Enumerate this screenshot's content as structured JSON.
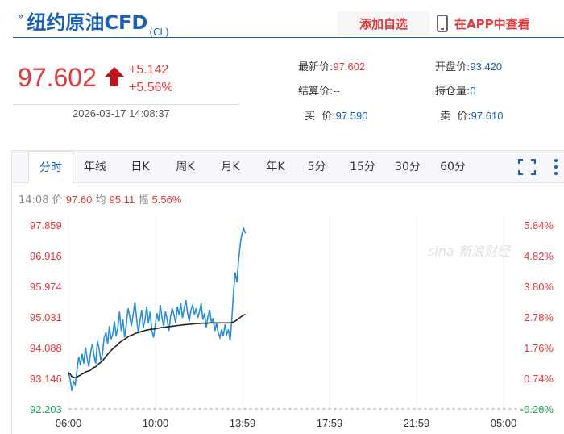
{
  "header": {
    "title": "纽约原油CFD",
    "code": "(CL)",
    "add_label": "添加自选",
    "app_label": "在APP中查看"
  },
  "quote": {
    "price": "97.602",
    "change": "+5.142",
    "change_pct": "+5.56%",
    "datetime": "2026-03-17 14:08:37",
    "fields": [
      {
        "label": "最新价:",
        "value": "97.602",
        "red": true
      },
      {
        "label": "开盘价:",
        "value": "93.420",
        "red": false
      },
      {
        "label": "结算价:",
        "value": "--",
        "red": false
      },
      {
        "label": "持仓量:",
        "value": "0",
        "red": false
      },
      {
        "label": "买  价:",
        "value": "97.590",
        "red": false
      },
      {
        "label": "卖  价:",
        "value": "97.610",
        "red": false
      }
    ]
  },
  "tabs": [
    "分时",
    "年线",
    "日K",
    "周K",
    "月K",
    "年K",
    "5分",
    "15分",
    "30分",
    "60分"
  ],
  "active_tab": 0,
  "infobar": {
    "time": "14:08",
    "price_label": "价",
    "price": "97.60",
    "avg_label": "均",
    "avg": "95.11",
    "amp_label": "幅",
    "amp": "5.56%"
  },
  "watermark": "新浪财经",
  "colors": {
    "red": "#e4393c",
    "blue": "#1a5fb4",
    "green": "#1aaa55",
    "price_line": "#2a8fd4",
    "avg_line": "#222222"
  },
  "chart_data": {
    "type": "line",
    "y_left_ticks": [
      "97.859",
      "96.916",
      "95.974",
      "95.031",
      "94.088",
      "93.146",
      "92.203"
    ],
    "y_right_ticks": [
      "5.84%",
      "4.82%",
      "3.80%",
      "2.78%",
      "1.76%",
      "0.74%",
      "-0.28%"
    ],
    "ylim": [
      92.203,
      97.859
    ],
    "x_ticks": [
      "06:00",
      "10:00",
      "13:59",
      "17:59",
      "21:59",
      "05:00"
    ],
    "prev_close": 92.46,
    "series": [
      {
        "key": "price",
        "values": [
          93.35,
          93.1,
          92.75,
          93.05,
          92.95,
          93.4,
          93.8,
          93.55,
          93.9,
          93.6,
          94.1,
          93.75,
          93.5,
          93.95,
          94.2,
          93.85,
          93.6,
          94.3,
          94.05,
          93.7,
          93.9,
          94.4,
          94.55,
          94.2,
          94.75,
          94.35,
          94.5,
          94.9,
          94.45,
          94.7,
          95.2,
          94.6,
          94.95,
          94.4,
          94.8,
          95.3,
          95.05,
          94.75,
          95.1,
          95.5,
          95.0,
          94.55,
          94.9,
          95.25,
          94.7,
          94.95,
          95.35,
          94.85,
          95.2,
          94.6,
          94.4,
          94.8,
          95.15,
          94.9,
          95.4,
          95.0,
          94.75,
          95.2,
          94.95,
          94.6,
          95.05,
          95.3,
          95.1,
          94.85,
          95.35,
          95.1,
          95.45,
          95.0,
          95.3,
          95.55,
          95.15,
          94.9,
          95.25,
          95.4,
          95.1,
          95.3,
          95.0,
          95.2,
          95.45,
          94.95,
          95.15,
          94.7,
          95.05,
          95.25,
          94.85,
          95.0,
          94.6,
          94.85,
          94.55,
          94.4,
          94.65,
          94.45,
          94.8,
          94.5,
          94.65,
          94.3,
          94.95,
          95.8,
          96.4,
          96.1,
          96.8,
          97.3,
          97.6,
          97.75,
          97.6
        ],
        "start": "06:00",
        "end": "14:08"
      },
      {
        "key": "average",
        "values": [
          93.3,
          93.28,
          93.2,
          93.18,
          93.16,
          93.18,
          93.22,
          93.24,
          93.28,
          93.3,
          93.34,
          93.36,
          93.37,
          93.4,
          93.45,
          93.48,
          93.5,
          93.55,
          93.6,
          93.64,
          93.68,
          93.75,
          93.82,
          93.88,
          93.95,
          94.0,
          94.05,
          94.1,
          94.14,
          94.18,
          94.24,
          94.28,
          94.32,
          94.35,
          94.38,
          94.42,
          94.45,
          94.47,
          94.49,
          94.52,
          94.54,
          94.55,
          94.57,
          94.59,
          94.6,
          94.62,
          94.63,
          94.64,
          94.65,
          94.66,
          94.66,
          94.67,
          94.68,
          94.69,
          94.7,
          94.71,
          94.71,
          94.72,
          94.73,
          94.73,
          94.74,
          94.75,
          94.75,
          94.76,
          94.77,
          94.77,
          94.78,
          94.79,
          94.79,
          94.8,
          94.8,
          94.81,
          94.81,
          94.82,
          94.82,
          94.83,
          94.83,
          94.83,
          94.84,
          94.84,
          94.84,
          94.84,
          94.84,
          94.85,
          94.85,
          94.85,
          94.85,
          94.85,
          94.85,
          94.85,
          94.85,
          94.85,
          94.85,
          94.85,
          94.85,
          94.85,
          94.86,
          94.88,
          94.91,
          94.94,
          94.98,
          95.02,
          95.06,
          95.09,
          95.11
        ],
        "start": "06:00",
        "end": "14:08"
      }
    ]
  }
}
